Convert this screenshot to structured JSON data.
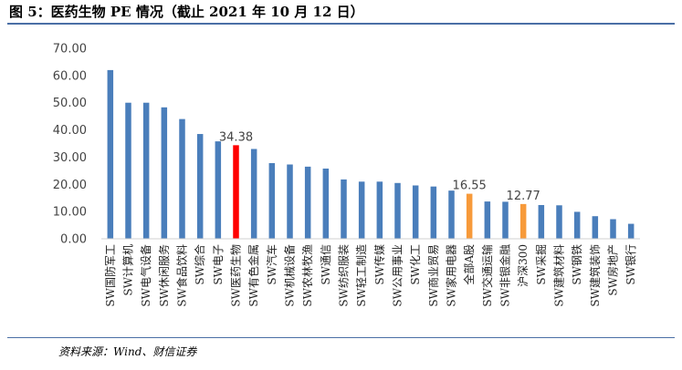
{
  "figure": {
    "title": "图 5：医药生物 PE 情况（截止 2021 年 10 月 12 日）",
    "source": "资料来源：Wind、财信证券"
  },
  "colors": {
    "default": "#4a7ebb",
    "highlight": "#ff0000",
    "benchmark": "#f79a3a",
    "rule": "#4a6fa5"
  },
  "chart_data": {
    "type": "bar",
    "title": "",
    "xlabel": "",
    "ylabel": "",
    "ylim": [
      0,
      70
    ],
    "yticks": [
      "0.00",
      "10.00",
      "20.00",
      "30.00",
      "40.00",
      "50.00",
      "60.00",
      "70.00"
    ],
    "grid": false,
    "legend": "none",
    "categories": [
      "SW国防军工",
      "SW计算机",
      "SW电气设备",
      "SW休闲服务",
      "SW食品饮料",
      "SW综合",
      "SW电子",
      "SW医药生物",
      "SW有色金属",
      "SW汽车",
      "SW机械设备",
      "SW农林牧渔",
      "SW通信",
      "SW纺织服装",
      "SW轻工制造",
      "SW传媒",
      "SW公用事业",
      "SW化工",
      "SW商业贸易",
      "SW家用电器",
      "全部A股",
      "SW交通运输",
      "SW非银金融",
      "沪深300",
      "SW采掘",
      "SW建筑材料",
      "SW钢铁",
      "SW建筑装饰",
      "SW房地产",
      "SW银行"
    ],
    "values": [
      62.0,
      50.0,
      50.0,
      48.3,
      44.0,
      38.5,
      35.8,
      34.38,
      33.0,
      27.8,
      27.3,
      26.5,
      25.8,
      21.8,
      21.0,
      21.0,
      20.5,
      19.6,
      19.2,
      17.7,
      16.55,
      13.7,
      13.6,
      12.77,
      12.4,
      12.3,
      9.9,
      8.3,
      7.2,
      5.5
    ],
    "highlight": {
      "SW医药生物": "highlight",
      "全部A股": "benchmark",
      "沪深300": "benchmark"
    },
    "data_labels": {
      "SW医药生物": "34.38",
      "全部A股": "16.55",
      "沪深300": "12.77"
    }
  }
}
